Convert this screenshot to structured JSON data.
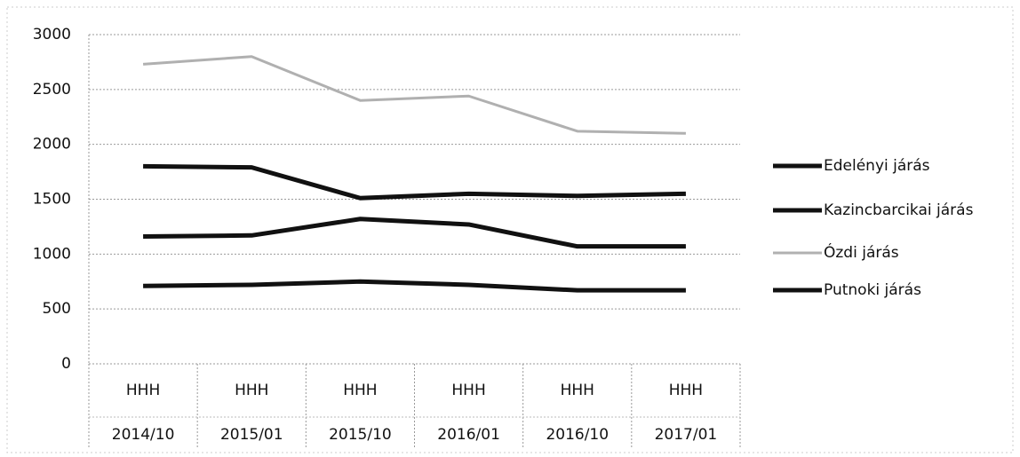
{
  "chart_data": {
    "type": "line",
    "categories": [
      [
        "HHH",
        "2014/10"
      ],
      [
        "HHH",
        "2015/01"
      ],
      [
        "HHH",
        "2015/10"
      ],
      [
        "HHH",
        "2016/01"
      ],
      [
        "HHH",
        "2016/10"
      ],
      [
        "HHH",
        "2017/01"
      ]
    ],
    "series": [
      {
        "name": "Edelényi járás",
        "color": "#111111",
        "values": [
          1800,
          1790,
          1510,
          1550,
          1530,
          1550
        ]
      },
      {
        "name": "Kazincbarcikai járás",
        "color": "#111111",
        "values": [
          1160,
          1170,
          1320,
          1270,
          1070,
          1070
        ]
      },
      {
        "name": "Ózdi járás",
        "color": "#b0b0b0",
        "values": [
          2730,
          2800,
          2400,
          2440,
          2120,
          2100
        ]
      },
      {
        "name": "Putnoki járás",
        "color": "#111111",
        "values": [
          710,
          720,
          750,
          720,
          670,
          670
        ]
      }
    ],
    "ylim": [
      0,
      3000
    ],
    "yticks": [
      0,
      500,
      1000,
      1500,
      2000,
      2500,
      3000
    ],
    "grid": true,
    "legend": "right"
  }
}
